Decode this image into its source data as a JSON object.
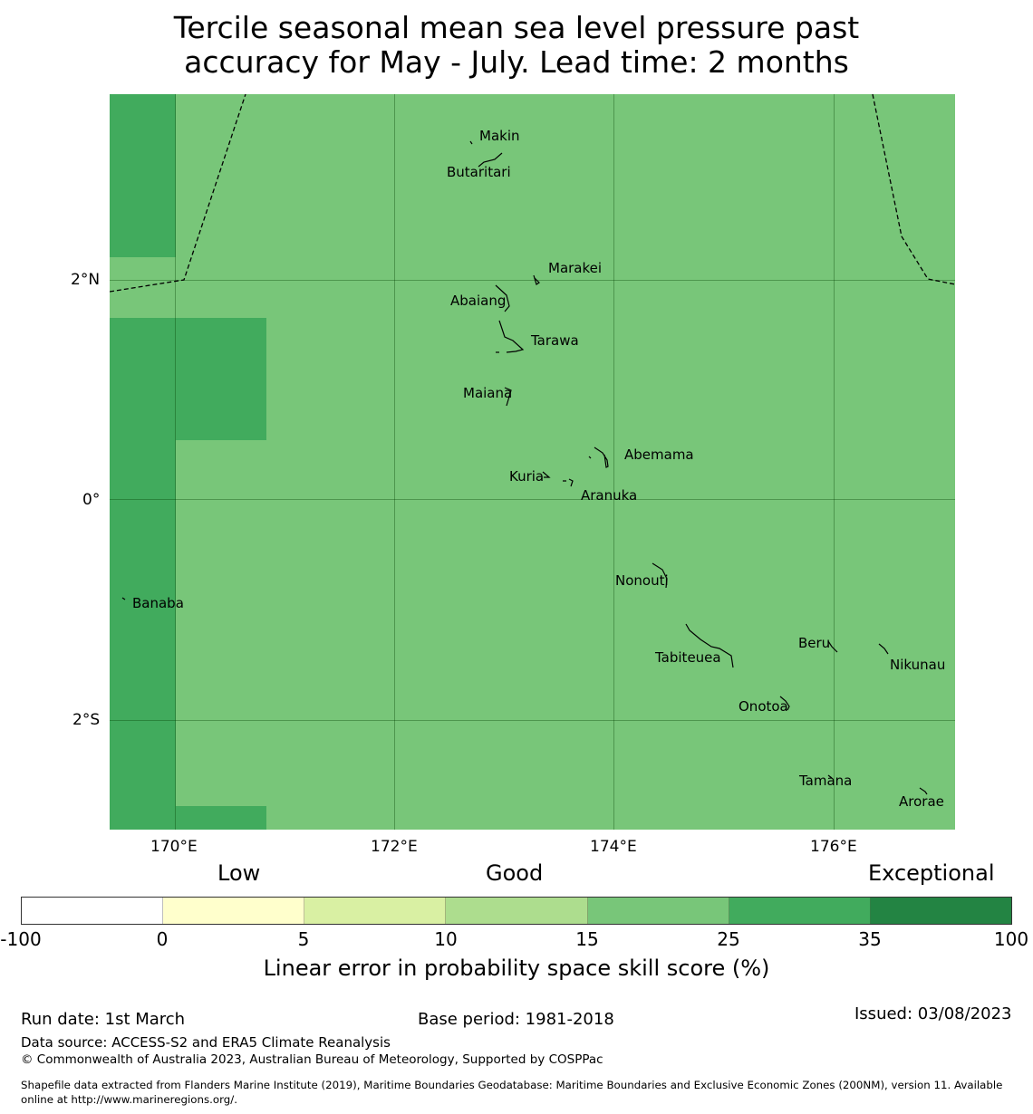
{
  "title_line1": "Tercile seasonal mean sea level pressure past",
  "title_line2": "accuracy for May - July. Lead time: 2 months",
  "map": {
    "fill_colors": {
      "base": "#78c679",
      "high": "#41ab5d"
    },
    "x_ticks": [
      "170°E",
      "172°E",
      "174°E",
      "176°E"
    ],
    "y_ticks": [
      "2°N",
      "0°",
      "2°S"
    ],
    "islands": [
      "Makin",
      "Butaritari",
      "Marakei",
      "Abaiang",
      "Tarawa",
      "Maiana",
      "Abemama",
      "Kuria",
      "Aranuka",
      "Nonouti",
      "Banaba",
      "Beru",
      "Nikunau",
      "Tabiteuea",
      "Onotoa",
      "Tamana",
      "Arorae"
    ]
  },
  "colorbar": {
    "category_labels": [
      "Low",
      "Good",
      "Exceptional"
    ],
    "colors": [
      "#ffffff",
      "#ffffcc",
      "#d9f0a3",
      "#addd8e",
      "#78c679",
      "#41ab5d",
      "#238443"
    ],
    "ticks": [
      "-100",
      "0",
      "5",
      "10",
      "15",
      "25",
      "35",
      "100"
    ],
    "label": "Linear error in probability space skill score (%)"
  },
  "footer": {
    "run_date": "Run date: 1st March",
    "base_period": "Base period: 1981-2018",
    "issued": "Issued: 03/08/2023",
    "data_source": "Data source: ACCESS-S2 and ERA5 Climate Reanalysis",
    "copyright": "© Commonwealth of Australia 2023, Australian Bureau of Meteorology, Supported by COSPPac",
    "shapefile_line1": "Shapefile data extracted from Flanders Marine Institute (2019), Maritime Boundaries Geodatabase: Maritime Boundaries and Exclusive Economic Zones (200NM), version 11. Available",
    "shapefile_line2": "online at http://www.marineregions.org/."
  }
}
